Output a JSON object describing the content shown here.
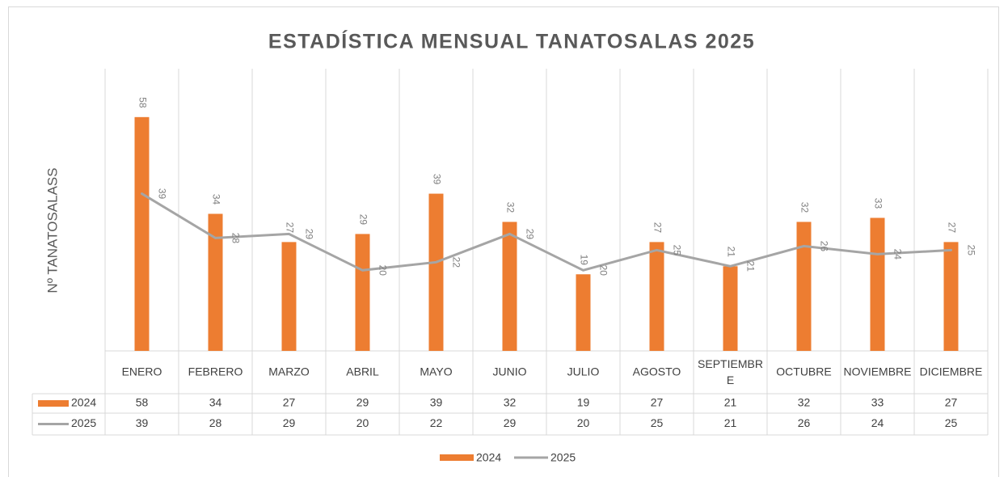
{
  "chart_data": {
    "type": "bar-line",
    "title": "ESTADÍSTICA MENSUAL TANATOSALAS 2025",
    "y_label": "Nº TANATOSALASS",
    "categories": [
      "ENERO",
      "FEBRERO",
      "MARZO",
      "ABRIL",
      "MAYO",
      "JUNIO",
      "JULIO",
      "AGOSTO",
      "SEPTIEMBRE",
      "OCTUBRE",
      "NOVIEMBRE",
      "DICIEMBRE"
    ],
    "series": [
      {
        "name": "2024",
        "type": "bar",
        "color": "#ed7d31",
        "values": [
          58,
          34,
          27,
          29,
          39,
          32,
          19,
          27,
          21,
          32,
          33,
          27
        ]
      },
      {
        "name": "2025",
        "type": "line",
        "color": "#a5a5a5",
        "values": [
          39,
          28,
          29,
          20,
          22,
          29,
          20,
          25,
          21,
          26,
          24,
          25
        ]
      }
    ],
    "ylim": [
      0,
      70
    ],
    "legend": "bottom"
  }
}
